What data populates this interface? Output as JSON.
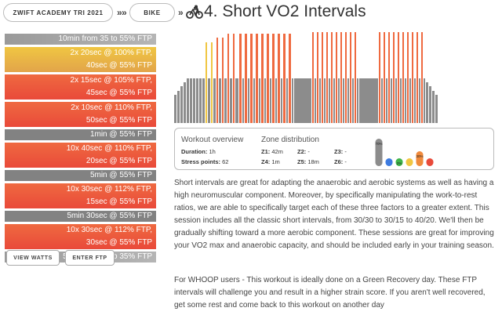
{
  "breadcrumb": {
    "academy": "ZWIFT ACADEMY TRI 2021",
    "sport": "BIKE",
    "separator": "»",
    "title": "4. Short VO2 Intervals"
  },
  "segments": [
    {
      "lines": [
        "10min from 35 to 55% FTP"
      ],
      "color": "grad"
    },
    {
      "lines": [
        "2x 20sec @ 100% FTP,",
        "40sec @ 55% FTP"
      ],
      "color": "yellow"
    },
    {
      "lines": [
        "2x 15sec @ 105% FTP,",
        "45sec @ 55% FTP"
      ],
      "color": "orange"
    },
    {
      "lines": [
        "2x 10sec @ 110% FTP,",
        "50sec @ 55% FTP"
      ],
      "color": "orange"
    },
    {
      "lines": [
        "1min @ 55% FTP"
      ],
      "color": "grey"
    },
    {
      "lines": [
        "10x 40sec @ 110% FTP,",
        "20sec @ 55% FTP"
      ],
      "color": "orange"
    },
    {
      "lines": [
        "5min @ 55% FTP"
      ],
      "color": "grey"
    },
    {
      "lines": [
        "10x 30sec @ 112% FTP,",
        "15sec @ 55% FTP"
      ],
      "color": "orange"
    },
    {
      "lines": [
        "5min 30sec @ 55% FTP"
      ],
      "color": "grey"
    },
    {
      "lines": [
        "10x 30sec @ 112% FTP,",
        "30sec @ 55% FTP"
      ],
      "color": "orange"
    },
    {
      "lines": [
        "5min from 55 to 35% FTP"
      ],
      "color": "grad"
    }
  ],
  "buttons": {
    "view_watts": "VIEW WATTS",
    "enter_ftp": "ENTER FTP"
  },
  "overview": {
    "title": "Workout overview",
    "duration_label": "Duration:",
    "duration": "1h",
    "stress_label": "Stress points:",
    "stress": "62"
  },
  "zones": {
    "title": "Zone distribution",
    "z1_label": "Z1:",
    "z1": "42m",
    "z2_label": "Z2:",
    "z2": "-",
    "z3_label": "Z3:",
    "z3": "-",
    "z4_label": "Z4:",
    "z4": "1m",
    "z5_label": "Z5:",
    "z5": "18m",
    "z6_label": "Z6:",
    "z6": "-"
  },
  "zone_chart": {
    "labels": [
      "70%",
      "",
      "2%",
      "",
      "30%",
      ""
    ],
    "colors": [
      "#8c8c8c",
      "#3d7be0",
      "#3fb54a",
      "#f0c642",
      "#f08a3c",
      "#e94a3a"
    ],
    "fill": [
      0.7,
      0,
      0.02,
      0,
      0.3,
      0
    ]
  },
  "chart_colors": {
    "grey": "#8c8c8c",
    "yellow": "#f0c642",
    "orange": "#ef6a40"
  },
  "workout_profile": [
    {
      "w": 3,
      "p": 35,
      "c": "grey",
      "n": 1
    },
    {
      "w": 3,
      "p": 40,
      "c": "grey",
      "n": 1
    },
    {
      "w": 3,
      "p": 45,
      "c": "grey",
      "n": 1
    },
    {
      "w": 3,
      "p": 50,
      "c": "grey",
      "n": 1
    },
    {
      "w": 3,
      "p": 55,
      "c": "grey",
      "n": 6
    },
    {
      "w": 2,
      "p": 100,
      "c": "yellow",
      "n": 1
    },
    {
      "w": 3,
      "p": 55,
      "c": "grey",
      "n": 1
    },
    {
      "w": 2,
      "p": 100,
      "c": "yellow",
      "n": 1
    },
    {
      "w": 3,
      "p": 55,
      "c": "grey",
      "n": 1
    },
    {
      "w": 2,
      "p": 105,
      "c": "orange",
      "n": 1
    },
    {
      "w": 3,
      "p": 55,
      "c": "grey",
      "n": 1
    },
    {
      "w": 2,
      "p": 105,
      "c": "orange",
      "n": 1
    },
    {
      "w": 3,
      "p": 55,
      "c": "grey",
      "n": 1
    },
    {
      "w": 2,
      "p": 110,
      "c": "orange",
      "n": 1
    },
    {
      "w": 3,
      "p": 55,
      "c": "grey",
      "n": 1
    },
    {
      "w": 2,
      "p": 110,
      "c": "orange",
      "n": 1
    },
    {
      "w": 4,
      "p": 55,
      "c": "grey",
      "n": 1
    },
    {
      "w": 3,
      "p": 110,
      "c": "orange",
      "n": 1
    },
    {
      "w": 2,
      "p": 55,
      "c": "grey",
      "n": 1
    },
    {
      "w": 3,
      "p": 110,
      "c": "orange",
      "n": 1
    },
    {
      "w": 2,
      "p": 55,
      "c": "grey",
      "n": 1
    },
    {
      "w": 3,
      "p": 110,
      "c": "orange",
      "n": 1
    },
    {
      "w": 2,
      "p": 55,
      "c": "grey",
      "n": 1
    },
    {
      "w": 3,
      "p": 110,
      "c": "orange",
      "n": 1
    },
    {
      "w": 2,
      "p": 55,
      "c": "grey",
      "n": 1
    },
    {
      "w": 3,
      "p": 110,
      "c": "orange",
      "n": 1
    },
    {
      "w": 2,
      "p": 55,
      "c": "grey",
      "n": 1
    },
    {
      "w": 3,
      "p": 110,
      "c": "orange",
      "n": 1
    },
    {
      "w": 2,
      "p": 55,
      "c": "grey",
      "n": 1
    },
    {
      "w": 3,
      "p": 110,
      "c": "orange",
      "n": 1
    },
    {
      "w": 2,
      "p": 55,
      "c": "grey",
      "n": 1
    },
    {
      "w": 3,
      "p": 110,
      "c": "orange",
      "n": 1
    },
    {
      "w": 2,
      "p": 55,
      "c": "grey",
      "n": 1
    },
    {
      "w": 3,
      "p": 110,
      "c": "orange",
      "n": 1
    },
    {
      "w": 2,
      "p": 55,
      "c": "grey",
      "n": 1
    },
    {
      "w": 3,
      "p": 110,
      "c": "orange",
      "n": 1
    },
    {
      "w": 2,
      "p": 55,
      "c": "grey",
      "n": 1
    },
    {
      "w": 22,
      "p": 55,
      "c": "grey",
      "n": 1
    },
    {
      "w": 2,
      "p": 112,
      "c": "orange",
      "n": 1
    },
    {
      "w": 2,
      "p": 55,
      "c": "grey",
      "n": 1
    },
    {
      "w": 2,
      "p": 112,
      "c": "orange",
      "n": 1
    },
    {
      "w": 2,
      "p": 55,
      "c": "grey",
      "n": 1
    },
    {
      "w": 2,
      "p": 112,
      "c": "orange",
      "n": 1
    },
    {
      "w": 2,
      "p": 55,
      "c": "grey",
      "n": 1
    },
    {
      "w": 2,
      "p": 112,
      "c": "orange",
      "n": 1
    },
    {
      "w": 2,
      "p": 55,
      "c": "grey",
      "n": 1
    },
    {
      "w": 2,
      "p": 112,
      "c": "orange",
      "n": 1
    },
    {
      "w": 2,
      "p": 55,
      "c": "grey",
      "n": 1
    },
    {
      "w": 2,
      "p": 112,
      "c": "orange",
      "n": 1
    },
    {
      "w": 2,
      "p": 55,
      "c": "grey",
      "n": 1
    },
    {
      "w": 2,
      "p": 112,
      "c": "orange",
      "n": 1
    },
    {
      "w": 2,
      "p": 55,
      "c": "grey",
      "n": 1
    },
    {
      "w": 2,
      "p": 112,
      "c": "orange",
      "n": 1
    },
    {
      "w": 2,
      "p": 55,
      "c": "grey",
      "n": 1
    },
    {
      "w": 2,
      "p": 112,
      "c": "orange",
      "n": 1
    },
    {
      "w": 2,
      "p": 55,
      "c": "grey",
      "n": 1
    },
    {
      "w": 2,
      "p": 112,
      "c": "orange",
      "n": 1
    },
    {
      "w": 2,
      "p": 55,
      "c": "grey",
      "n": 1
    },
    {
      "w": 24,
      "p": 55,
      "c": "grey",
      "n": 1
    },
    {
      "w": 2,
      "p": 112,
      "c": "orange",
      "n": 1
    },
    {
      "w": 2,
      "p": 55,
      "c": "grey",
      "n": 1
    },
    {
      "w": 2,
      "p": 112,
      "c": "orange",
      "n": 1
    },
    {
      "w": 2,
      "p": 55,
      "c": "grey",
      "n": 1
    },
    {
      "w": 2,
      "p": 112,
      "c": "orange",
      "n": 1
    },
    {
      "w": 2,
      "p": 55,
      "c": "grey",
      "n": 1
    },
    {
      "w": 2,
      "p": 112,
      "c": "orange",
      "n": 1
    },
    {
      "w": 2,
      "p": 55,
      "c": "grey",
      "n": 1
    },
    {
      "w": 2,
      "p": 112,
      "c": "orange",
      "n": 1
    },
    {
      "w": 2,
      "p": 55,
      "c": "grey",
      "n": 1
    },
    {
      "w": 2,
      "p": 112,
      "c": "orange",
      "n": 1
    },
    {
      "w": 2,
      "p": 55,
      "c": "grey",
      "n": 1
    },
    {
      "w": 2,
      "p": 112,
      "c": "orange",
      "n": 1
    },
    {
      "w": 2,
      "p": 55,
      "c": "grey",
      "n": 1
    },
    {
      "w": 2,
      "p": 112,
      "c": "orange",
      "n": 1
    },
    {
      "w": 2,
      "p": 55,
      "c": "grey",
      "n": 1
    },
    {
      "w": 2,
      "p": 112,
      "c": "orange",
      "n": 1
    },
    {
      "w": 2,
      "p": 55,
      "c": "grey",
      "n": 1
    },
    {
      "w": 2,
      "p": 112,
      "c": "orange",
      "n": 1
    },
    {
      "w": 2,
      "p": 55,
      "c": "grey",
      "n": 1
    },
    {
      "w": 3,
      "p": 50,
      "c": "grey",
      "n": 1
    },
    {
      "w": 3,
      "p": 45,
      "c": "grey",
      "n": 1
    },
    {
      "w": 3,
      "p": 40,
      "c": "grey",
      "n": 1
    },
    {
      "w": 3,
      "p": 35,
      "c": "grey",
      "n": 1
    }
  ],
  "description": {
    "p1": "Short intervals are great for adapting the anaerobic and aerobic systems as well as having a high neuromuscular component. Moreover, by specifically manipulating the work-to-rest ratios, we are able to specifically target each of these three factors to a greater extent. This session includes all the classic short intervals, from 30/30 to 30/15 to 40/20. We'll then be gradually shifting toward a more aerobic component. These sessions are great for improving your VO2 max and anaerobic capacity, and should be included early in your training season.",
    "p2": "For WHOOP users - This workout is ideally done on a Green Recovery day. These FTP intervals will challenge you and result in a higher strain score. If you aren't well recovered, get some rest and come back to this workout on another day"
  }
}
